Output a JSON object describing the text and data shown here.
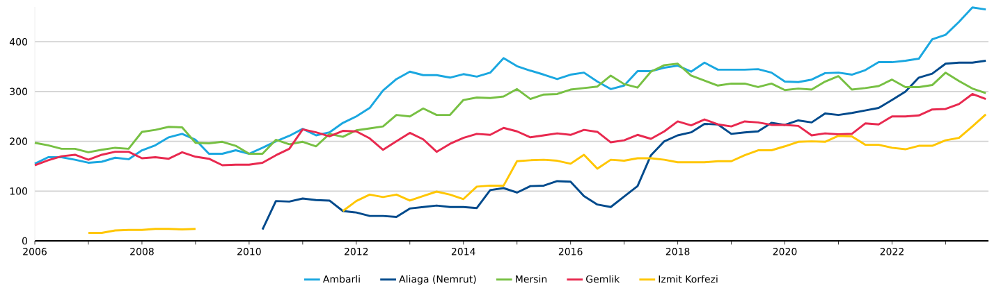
{
  "chart_data": {
    "type": "line",
    "x": [
      2006,
      2006.25,
      2006.5,
      2006.75,
      2007,
      2007.25,
      2007.5,
      2007.75,
      2008,
      2008.25,
      2008.5,
      2008.75,
      2009,
      2009.25,
      2009.5,
      2009.75,
      2010,
      2010.25,
      2010.5,
      2010.75,
      2011,
      2011.25,
      2011.5,
      2011.75,
      2012,
      2012.25,
      2012.5,
      2012.75,
      2013,
      2013.25,
      2013.5,
      2013.75,
      2014,
      2014.25,
      2014.5,
      2014.75,
      2015,
      2015.25,
      2015.5,
      2015.75,
      2016,
      2016.25,
      2016.5,
      2016.75,
      2017,
      2017.25,
      2017.5,
      2017.75,
      2018,
      2018.25,
      2018.5,
      2018.75,
      2019,
      2019.25,
      2019.5,
      2019.75,
      2020,
      2020.25,
      2020.5,
      2020.75,
      2021,
      2021.25,
      2021.5,
      2021.75,
      2022,
      2022.25,
      2022.5,
      2022.75,
      2023,
      2023.25,
      2023.5,
      2023.75
    ],
    "series": [
      {
        "name": "Ambarli",
        "color": "#1aa7e0",
        "values": [
          155,
          168,
          168,
          163,
          157,
          159,
          167,
          164,
          182,
          192,
          208,
          215,
          203,
          175,
          175,
          182,
          175,
          187,
          200,
          211,
          225,
          212,
          218,
          237,
          250,
          267,
          302,
          325,
          340,
          333,
          333,
          328,
          335,
          330,
          338,
          367,
          351,
          342,
          334,
          325,
          334,
          338,
          320,
          305,
          312,
          341,
          341,
          348,
          352,
          340,
          358,
          344,
          344,
          344,
          345,
          338,
          320,
          319,
          324,
          337,
          338,
          334,
          343,
          359,
          359,
          362,
          366,
          405,
          414,
          440,
          469,
          465
        ]
      },
      {
        "name": "Aliaga (Nemrut)",
        "color": "#004a8c",
        "values": [
          null,
          null,
          null,
          null,
          null,
          null,
          null,
          null,
          null,
          null,
          null,
          null,
          null,
          null,
          null,
          null,
          null,
          23,
          80,
          79,
          85,
          82,
          81,
          60,
          57,
          50,
          50,
          48,
          65,
          68,
          71,
          68,
          68,
          66,
          102,
          106,
          97,
          110,
          111,
          120,
          119,
          90,
          73,
          68,
          89,
          110,
          172,
          200,
          212,
          218,
          235,
          234,
          215,
          218,
          220,
          237,
          233,
          242,
          238,
          256,
          253,
          257,
          262,
          267,
          283,
          300,
          328,
          336,
          356,
          358,
          358,
          362
        ]
      },
      {
        "name": "Mersin",
        "color": "#77c043",
        "values": [
          197,
          192,
          185,
          185,
          178,
          183,
          187,
          185,
          219,
          223,
          229,
          228,
          197,
          196,
          199,
          191,
          175,
          175,
          203,
          194,
          199,
          190,
          215,
          209,
          222,
          226,
          230,
          253,
          250,
          266,
          253,
          253,
          283,
          288,
          287,
          290,
          305,
          285,
          294,
          295,
          304,
          307,
          310,
          332,
          315,
          308,
          340,
          353,
          356,
          332,
          322,
          312,
          316,
          316,
          309,
          316,
          303,
          306,
          304,
          320,
          331,
          304,
          307,
          311,
          324,
          309,
          309,
          313,
          338,
          321,
          306,
          297
        ]
      },
      {
        "name": "Gemlik",
        "color": "#e8294f",
        "values": [
          152,
          162,
          170,
          173,
          163,
          173,
          179,
          179,
          166,
          168,
          165,
          178,
          169,
          165,
          152,
          153,
          153,
          157,
          172,
          185,
          224,
          218,
          210,
          221,
          220,
          206,
          183,
          200,
          217,
          204,
          179,
          195,
          207,
          215,
          213,
          227,
          220,
          208,
          212,
          216,
          213,
          223,
          219,
          198,
          202,
          213,
          205,
          220,
          240,
          232,
          244,
          234,
          230,
          240,
          238,
          233,
          233,
          231,
          212,
          216,
          214,
          215,
          236,
          234,
          250,
          250,
          252,
          264,
          265,
          275,
          295,
          285
        ]
      },
      {
        "name": "Izmit Korfezi",
        "color": "#ffc600",
        "values": [
          null,
          null,
          null,
          null,
          16,
          16,
          21,
          22,
          22,
          24,
          24,
          23,
          24,
          null,
          null,
          null,
          null,
          null,
          null,
          null,
          null,
          null,
          null,
          60,
          80,
          93,
          88,
          93,
          81,
          90,
          99,
          93,
          84,
          109,
          111,
          111,
          160,
          162,
          163,
          161,
          155,
          173,
          145,
          163,
          161,
          166,
          166,
          163,
          158,
          158,
          158,
          160,
          160,
          172,
          182,
          182,
          190,
          199,
          200,
          199,
          211,
          210,
          193,
          193,
          187,
          184,
          191,
          191,
          202,
          207,
          230,
          254
        ]
      }
    ],
    "xlim": [
      2006,
      2023.8
    ],
    "xticks": [
      2006,
      {
        "value": 2007,
        "label": null
      },
      2008,
      {
        "value": 2009,
        "label": null
      },
      2010,
      {
        "value": 2011,
        "label": null
      },
      2012,
      {
        "value": 2013,
        "label": null
      },
      2014,
      {
        "value": 2015,
        "label": null
      },
      2016,
      {
        "value": 2017,
        "label": null
      },
      2018,
      {
        "value": 2019,
        "label": null
      },
      2020,
      {
        "value": 2021,
        "label": null
      },
      2022,
      {
        "value": 2023,
        "label": null
      }
    ],
    "ylim": [
      0,
      470
    ],
    "yticks": [
      0,
      100,
      200,
      300,
      400
    ],
    "grid": "y",
    "legend": "bottom",
    "marker": "none",
    "line_style": "solid"
  }
}
